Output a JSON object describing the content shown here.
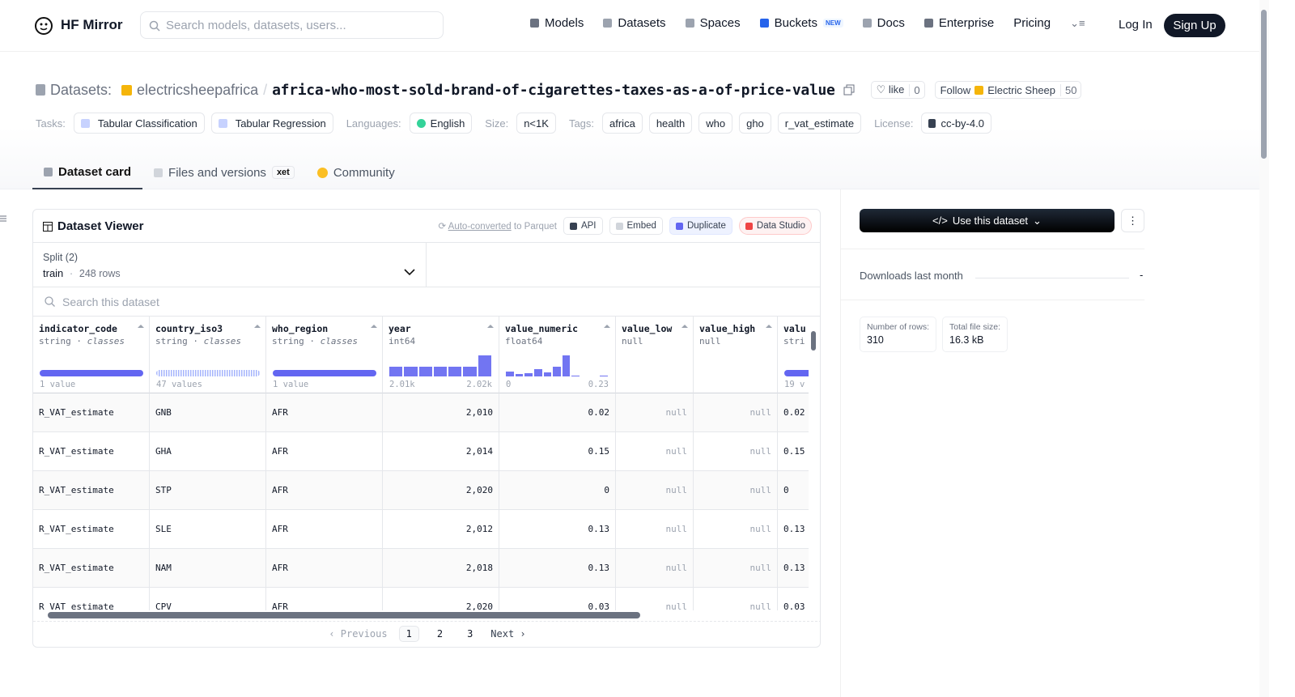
{
  "nav": {
    "brand": "HF Mirror",
    "search_placeholder": "Search models, datasets, users...",
    "links": [
      "Models",
      "Datasets",
      "Spaces",
      "Buckets",
      "Docs",
      "Enterprise",
      "Pricing"
    ],
    "new_badge": "NEW",
    "login": "Log In",
    "signup": "Sign Up"
  },
  "header": {
    "prefix": "Datasets:",
    "owner": "electricsheepafrica",
    "separator": "/",
    "name": "africa-who-most-sold-brand-of-cigarettes-taxes-as-a-of-price-value",
    "like": "like",
    "like_count": "0",
    "follow": "Follow",
    "follow_org": "Electric Sheep",
    "followers": "50"
  },
  "tag_groups": [
    {
      "label": "Tasks:",
      "items": [
        "Tabular Classification",
        "Tabular Regression"
      ]
    },
    {
      "label": "Languages:",
      "items": [
        "English"
      ]
    },
    {
      "label": "Size:",
      "items": [
        "n<1K"
      ]
    },
    {
      "label": "Tags:",
      "items": [
        "africa",
        "health",
        "who",
        "gho",
        "r_vat_estimate"
      ]
    },
    {
      "label": "License:",
      "items": [
        "cc-by-4.0"
      ]
    }
  ],
  "tabs": {
    "items": [
      "Dataset card",
      "Files and versions",
      "Community"
    ],
    "xet_badge": "xet"
  },
  "viewer": {
    "title": "Dataset Viewer",
    "auto_link": "Auto-converted",
    "auto_rest": "to Parquet",
    "buttons": [
      "API",
      "Embed",
      "Duplicate",
      "Data Studio"
    ],
    "split_label": "Split (2)",
    "split_name": "train",
    "dot": "·",
    "split_rows": "248 rows",
    "search_placeholder": "Search this dataset",
    "columns": [
      {
        "name": "indicator_code",
        "type": "string",
        "kind": "classes",
        "stats": [
          "1 value"
        ]
      },
      {
        "name": "country_iso3",
        "type": "string",
        "kind": "classes",
        "stats": [
          "47 values"
        ]
      },
      {
        "name": "who_region",
        "type": "string",
        "kind": "classes",
        "stats": [
          "1 value"
        ]
      },
      {
        "name": "year",
        "type": "int64",
        "stats": [
          "2.01k",
          "2.02k"
        ],
        "histogram": [
          12,
          12,
          12,
          12,
          12,
          12,
          26
        ]
      },
      {
        "name": "value_numeric",
        "type": "float64",
        "stats": [
          "0",
          "0.23"
        ],
        "histogram": [
          6,
          3,
          4,
          9,
          5,
          12,
          26,
          1,
          0,
          0,
          1
        ]
      },
      {
        "name": "value_low",
        "type": "null"
      },
      {
        "name": "value_high",
        "type": "null"
      },
      {
        "name": "valu",
        "type": "stri",
        "stats": [
          "19 v"
        ]
      }
    ],
    "rows": [
      [
        "R_VAT_estimate",
        "GNB",
        "AFR",
        "2,010",
        "0.02",
        "null",
        "null",
        "0.02"
      ],
      [
        "R_VAT_estimate",
        "GHA",
        "AFR",
        "2,014",
        "0.15",
        "null",
        "null",
        "0.15"
      ],
      [
        "R_VAT_estimate",
        "STP",
        "AFR",
        "2,020",
        "0",
        "null",
        "null",
        "0"
      ],
      [
        "R_VAT_estimate",
        "SLE",
        "AFR",
        "2,012",
        "0.13",
        "null",
        "null",
        "0.13"
      ],
      [
        "R_VAT_estimate",
        "NAM",
        "AFR",
        "2,018",
        "0.13",
        "null",
        "null",
        "0.13"
      ],
      [
        "R_VAT_estimate",
        "CPV",
        "AFR",
        "2,020",
        "0.03",
        "null",
        "null",
        "0.03"
      ]
    ],
    "pagination": {
      "previous": "Previous",
      "pages": [
        "1",
        "2",
        "3"
      ],
      "next": "Next"
    }
  },
  "sidebar": {
    "use_button": "Use this dataset",
    "downloads_label": "Downloads last month",
    "downloads_value": "-",
    "stats": [
      {
        "label": "Number of rows:",
        "value": "310"
      },
      {
        "label": "Total file size:",
        "value": "16.3 kB"
      }
    ]
  }
}
